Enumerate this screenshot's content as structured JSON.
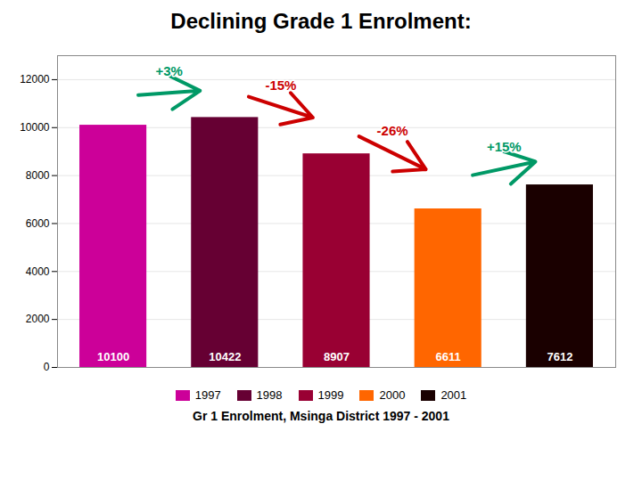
{
  "chart_data": {
    "type": "bar",
    "title": "Declining Grade 1 Enrolment:",
    "subtitle": "Gr 1 Enrolment, Msinga District 1997 - 2001",
    "categories": [
      "1997",
      "1998",
      "1999",
      "2000",
      "2001"
    ],
    "values": [
      10100,
      10422,
      8907,
      6611,
      7612
    ],
    "colors": [
      "#cc0099",
      "#660033",
      "#990033",
      "#ff6600",
      "#1a0000"
    ],
    "ylim": [
      0,
      13000
    ],
    "yticks": [
      0,
      2000,
      4000,
      6000,
      8000,
      10000,
      12000
    ],
    "grid": true,
    "legend": "bottom",
    "data_labels": true,
    "tick_labels": "y",
    "annotations": [
      {
        "text": "+3%",
        "color": "#009966"
      },
      {
        "text": "-15%",
        "color": "#cc0000"
      },
      {
        "text": "-26%",
        "color": "#cc0000"
      },
      {
        "text": "+15%",
        "color": "#009966"
      }
    ]
  }
}
